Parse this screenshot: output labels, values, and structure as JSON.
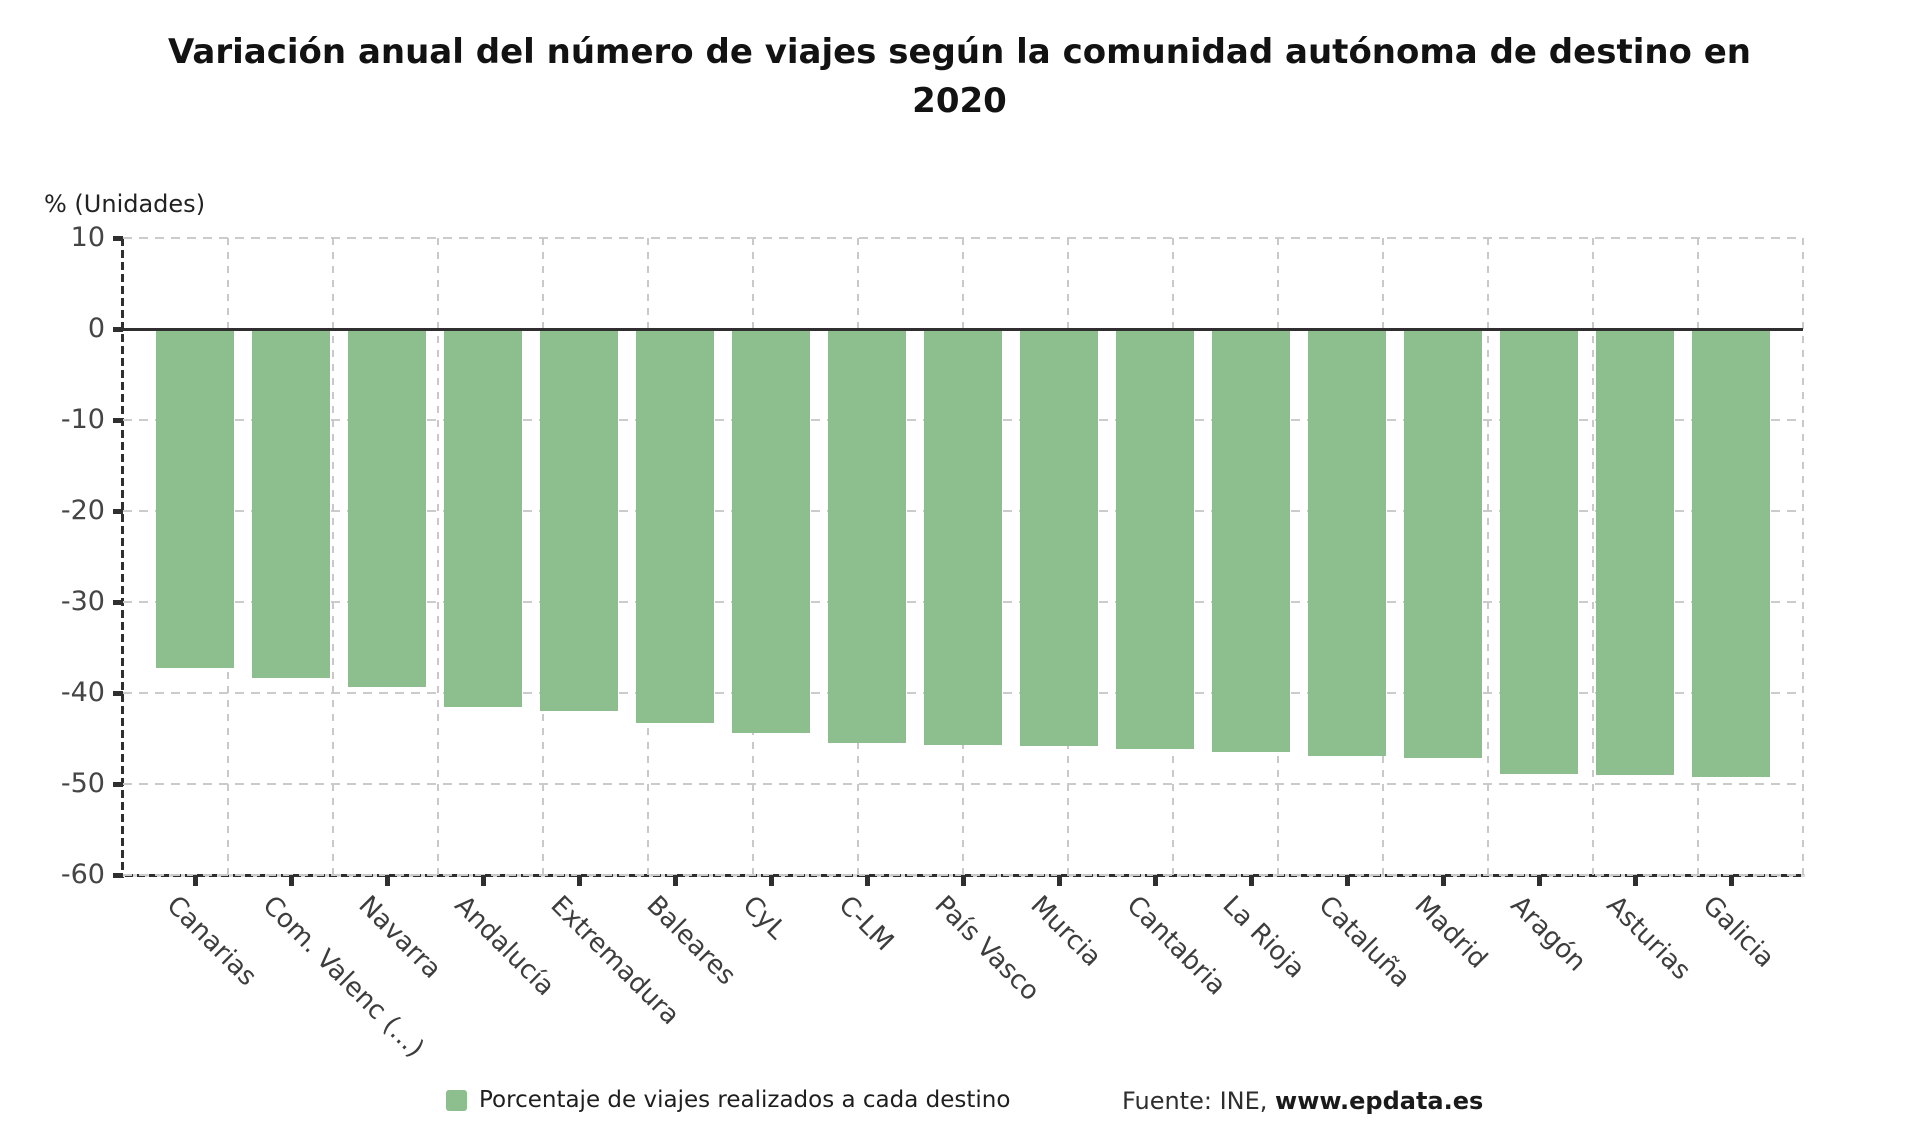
{
  "title": "Variación anual del número de viajes según la comunidad autónoma de destino en 2020",
  "y_axis_title": "% (Unidades)",
  "legend": {
    "label": "Porcentaje de viajes realizados a cada destino"
  },
  "source": {
    "prefix": "Fuente: INE, ",
    "link": "www.epdata.es"
  },
  "colors": {
    "bar": "#8cbe8e",
    "zero_line": "#2f2f2f",
    "axis": "#2f2f2f",
    "grid": "#cbcbcb",
    "title_text": "#121212",
    "tick_text": "#454545"
  },
  "chart_data": {
    "type": "bar",
    "title": "Variación anual del número de viajes según la comunidad autónoma de destino en 2020",
    "ylabel": "% (Unidades)",
    "xlabel": "",
    "categories": [
      "Canarias",
      "Com. Valenc (...)",
      "Navarra",
      "Andalucía",
      "Extremadura",
      "Baleares",
      "CyL",
      "C-LM",
      "País Vasco",
      "Murcia",
      "Cantabria",
      "La Rioja",
      "Cataluña",
      "Madrid",
      "Aragón",
      "Asturias",
      "Galicia"
    ],
    "series": [
      {
        "name": "Porcentaje de viajes realizados a cada destino",
        "values": [
          -37.2,
          -38.3,
          -39.3,
          -41.5,
          -42.0,
          -43.3,
          -44.4,
          -45.5,
          -45.7,
          -45.8,
          -46.2,
          -46.5,
          -46.9,
          -47.1,
          -48.9,
          -49.0,
          -49.2
        ]
      }
    ],
    "ylim": [
      -60,
      10
    ],
    "yticks": [
      10,
      0,
      -10,
      -20,
      -30,
      -40,
      -50,
      -60
    ],
    "grid": true,
    "grid_style": "dashed",
    "bar_color": "#8cbe8e",
    "legend_position": "bottom"
  }
}
